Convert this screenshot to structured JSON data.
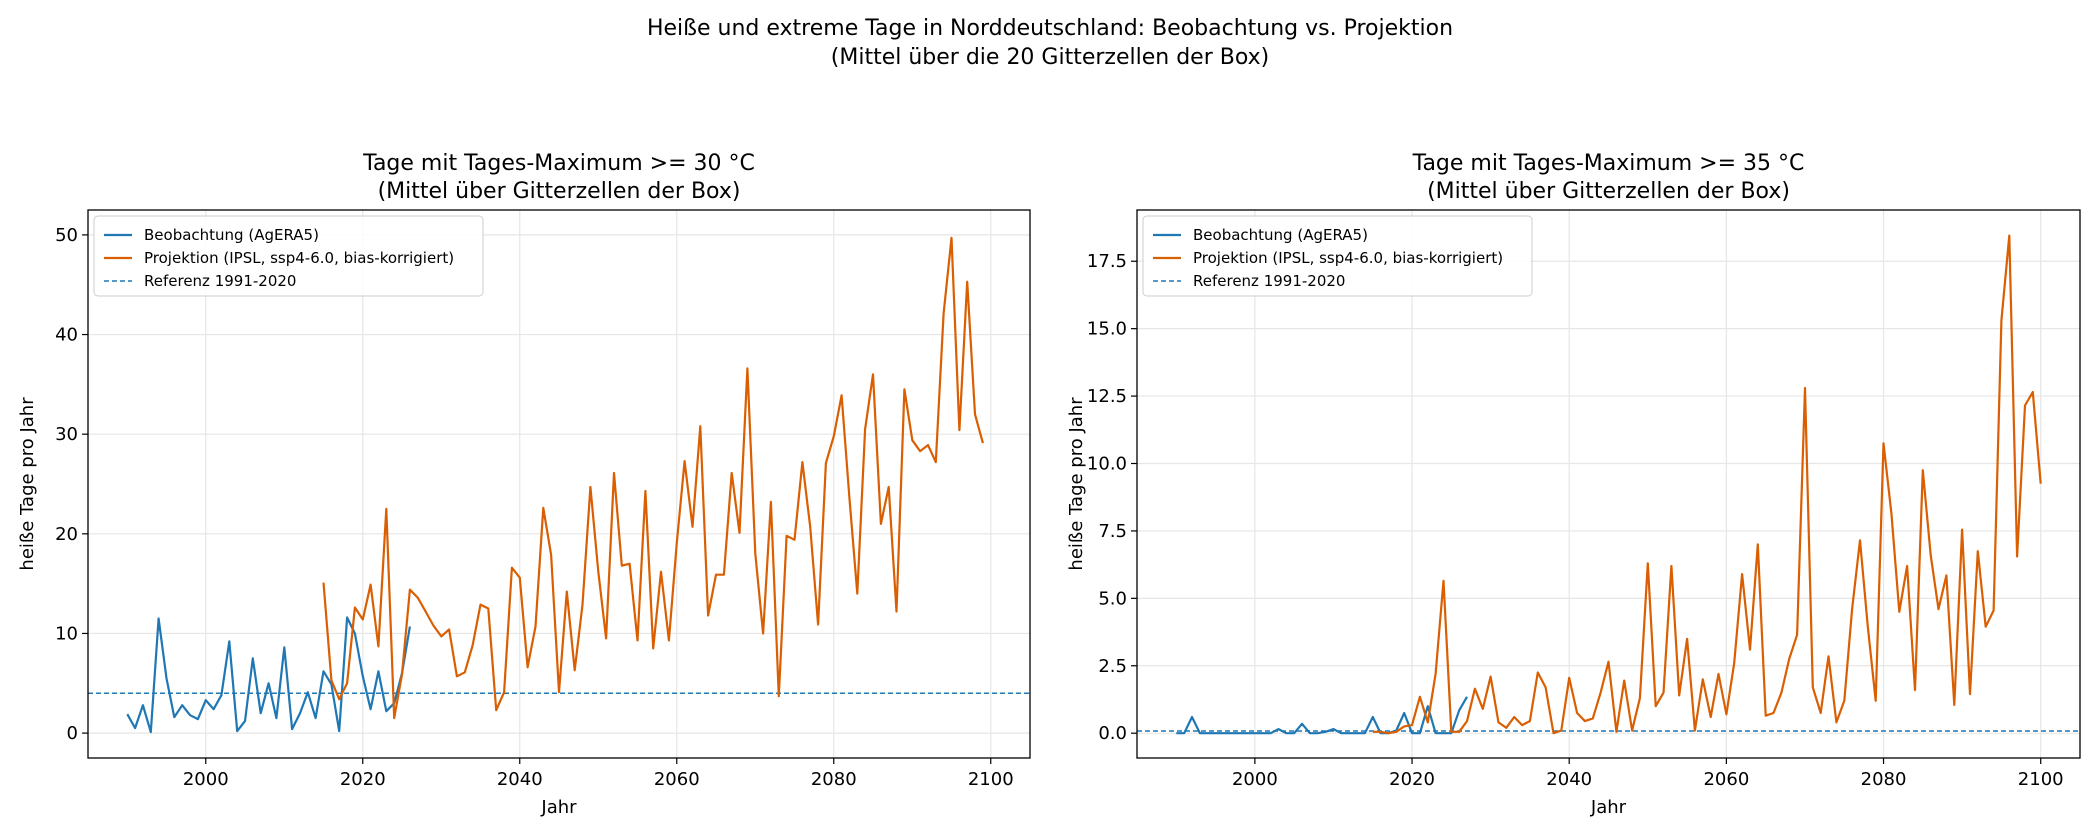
{
  "figure": {
    "suptitle_line1": "Heiße und extreme Tage in Norddeutschland: Beobachtung vs. Projektion",
    "suptitle_line2": "(Mittel über die 20 Gitterzellen der Box)"
  },
  "colors": {
    "observation": "#1f77b4",
    "projection": "#d95f02",
    "reference": "#1f77b4",
    "grid": "#e6e6e6"
  },
  "chart_data": [
    {
      "type": "line",
      "title_line1": "Tage mit Tages-Maximum >= 30 °C",
      "title_line2": "(Mittel über Gitterzellen der Box)",
      "xlabel": "Jahr",
      "ylabel": "heiße Tage pro Jahr",
      "xlim": [
        1985,
        2105
      ],
      "ylim": [
        -2.5,
        52.5
      ],
      "xticks": [
        2000,
        2020,
        2040,
        2060,
        2080,
        2100
      ],
      "xtick_labels": [
        "2000",
        "2020",
        "2040",
        "2060",
        "2080",
        "2100"
      ],
      "yticks": [
        0,
        10,
        20,
        30,
        40,
        50
      ],
      "ytick_labels": [
        "0",
        "10",
        "20",
        "30",
        "40",
        "50"
      ],
      "grid": true,
      "legend_position": "top-left",
      "reference": {
        "name": "Referenz 1991-2020",
        "value": 4.0
      },
      "series": [
        {
          "name": "Beobachtung (AgERA5)",
          "x_start": 1990,
          "values": [
            1.9,
            0.5,
            2.8,
            0.1,
            11.5,
            5.5,
            1.6,
            2.8,
            1.8,
            1.4,
            3.3,
            2.4,
            3.8,
            9.2,
            0.2,
            1.2,
            7.5,
            2.0,
            5.0,
            1.5,
            8.6,
            0.4,
            2.0,
            4.1,
            1.5,
            6.2,
            4.9,
            0.2,
            11.6,
            10.0,
            5.7,
            2.4,
            6.2,
            2.2,
            3.0,
            6.0,
            10.7
          ]
        },
        {
          "name": "Projektion (IPSL, ssp4-6.0, bias-korrigiert)",
          "x_start": 2015,
          "values": [
            15.1,
            5.3,
            3.4,
            5.0,
            12.6,
            11.4,
            14.9,
            8.7,
            22.5,
            1.5,
            5.9,
            14.4,
            13.6,
            12.2,
            10.8,
            9.7,
            10.4,
            5.7,
            6.1,
            8.8,
            12.9,
            12.5,
            2.3,
            4.1,
            16.6,
            15.6,
            6.6,
            10.7,
            22.6,
            17.9,
            4.1,
            14.2,
            6.3,
            12.9,
            24.7,
            16.2,
            9.5,
            26.1,
            16.8,
            17.0,
            9.3,
            24.3,
            8.5,
            16.2,
            9.3,
            19.1,
            27.3,
            20.7,
            30.8,
            11.8,
            15.9,
            15.9,
            26.1,
            20.1,
            36.6,
            18.0,
            10.0,
            23.2,
            3.7,
            19.8,
            19.4,
            27.2,
            20.7,
            10.9,
            27.1,
            29.8,
            33.9,
            23.5,
            14.0,
            30.5,
            36.0,
            21.0,
            24.7,
            12.2,
            34.5,
            29.4,
            28.3,
            28.9,
            27.2,
            42.1,
            49.7,
            30.4,
            45.3,
            32.0,
            29.1
          ]
        }
      ]
    },
    {
      "type": "line",
      "title_line1": "Tage mit Tages-Maximum >= 35 °C",
      "title_line2": "(Mittel über Gitterzellen der Box)",
      "xlabel": "Jahr",
      "ylabel": "heiße Tage pro Jahr",
      "xlim": [
        1985,
        2105
      ],
      "ylim": [
        -0.92,
        19.4
      ],
      "xticks": [
        2000,
        2020,
        2040,
        2060,
        2080,
        2100
      ],
      "xtick_labels": [
        "2000",
        "2020",
        "2040",
        "2060",
        "2080",
        "2100"
      ],
      "yticks": [
        0,
        2.5,
        5,
        7.5,
        10,
        12.5,
        15,
        17.5
      ],
      "ytick_labels": [
        "0.0",
        "2.5",
        "5.0",
        "7.5",
        "10.0",
        "12.5",
        "15.0",
        "17.5"
      ],
      "grid": true,
      "legend_position": "top-left",
      "reference": {
        "name": "Referenz 1991-2020",
        "value": 0.08
      },
      "series": [
        {
          "name": "Beobachtung (AgERA5)",
          "x_start": 1990,
          "values": [
            0.0,
            0.0,
            0.6,
            0.0,
            0.0,
            0.0,
            0.0,
            0.0,
            0.0,
            0.0,
            0.0,
            0.0,
            0.0,
            0.15,
            0.0,
            0.0,
            0.35,
            0.0,
            0.0,
            0.05,
            0.15,
            0.0,
            0.0,
            0.0,
            0.0,
            0.6,
            0.0,
            0.0,
            0.1,
            0.75,
            0.0,
            0.0,
            1.0,
            0.0,
            0.0,
            0.0,
            0.85,
            1.35
          ]
        },
        {
          "name": "Projektion (IPSL, ssp4-6.0, bias-korrigiert)",
          "x_start": 2015,
          "values": [
            0.05,
            0.05,
            0.0,
            0.05,
            0.25,
            0.3,
            1.35,
            0.4,
            2.2,
            5.65,
            0.05,
            0.05,
            0.45,
            1.65,
            0.9,
            2.1,
            0.4,
            0.2,
            0.6,
            0.3,
            0.45,
            2.25,
            1.7,
            0.0,
            0.1,
            2.05,
            0.75,
            0.45,
            0.55,
            1.5,
            2.65,
            0.05,
            1.95,
            0.1,
            1.3,
            6.3,
            1.0,
            1.5,
            6.2,
            1.4,
            3.5,
            0.1,
            2.0,
            0.6,
            2.2,
            0.7,
            2.6,
            5.9,
            3.1,
            7.0,
            0.65,
            0.75,
            1.5,
            2.75,
            3.65,
            12.8,
            1.7,
            0.75,
            2.85,
            0.4,
            1.2,
            4.6,
            7.15,
            3.95,
            1.2,
            10.75,
            8.15,
            4.5,
            6.2,
            1.6,
            9.75,
            6.6,
            4.6,
            5.85,
            1.05,
            7.55,
            1.45,
            6.75,
            3.95,
            4.55,
            15.3,
            18.45,
            6.55,
            12.15,
            12.65,
            9.25
          ]
        }
      ]
    }
  ]
}
